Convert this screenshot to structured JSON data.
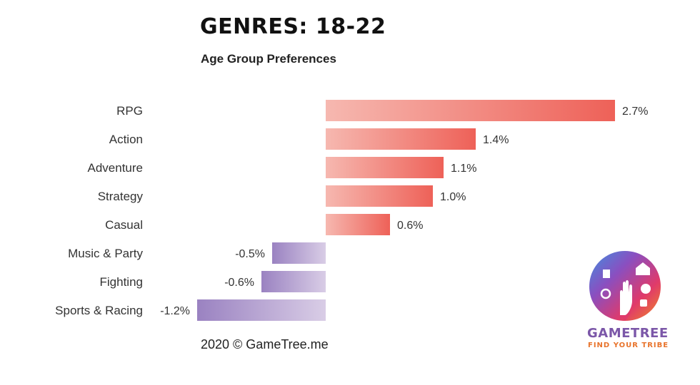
{
  "title": "GENRES: 18-22",
  "subtitle": "Age Group Preferences",
  "footer": "2020 © GameTree.me",
  "logo": {
    "name": "GAMETREE",
    "tagline": "FIND YOUR TRIBE"
  },
  "colors": {
    "positive_start": "#f6b8b0",
    "positive_end": "#ee6158",
    "negative_start": "#9a82c1",
    "negative_end": "#d9cde6"
  },
  "chart_data": {
    "type": "bar",
    "orientation": "horizontal",
    "title": "GENRES: 18-22",
    "subtitle": "Age Group Preferences",
    "categories": [
      "RPG",
      "Action",
      "Adventure",
      "Strategy",
      "Casual",
      "Music & Party",
      "Fighting",
      "Sports & Racing"
    ],
    "values": [
      2.7,
      1.4,
      1.1,
      1.0,
      0.6,
      -0.5,
      -0.6,
      -1.2
    ],
    "value_labels": [
      "2.7%",
      "1.4%",
      "1.1%",
      "1.0%",
      "0.6%",
      "-0.5%",
      "-0.6%",
      "-1.2%"
    ],
    "unit": "%",
    "xlim": [
      -1.2,
      2.7
    ],
    "grid": false,
    "legend": "none"
  }
}
